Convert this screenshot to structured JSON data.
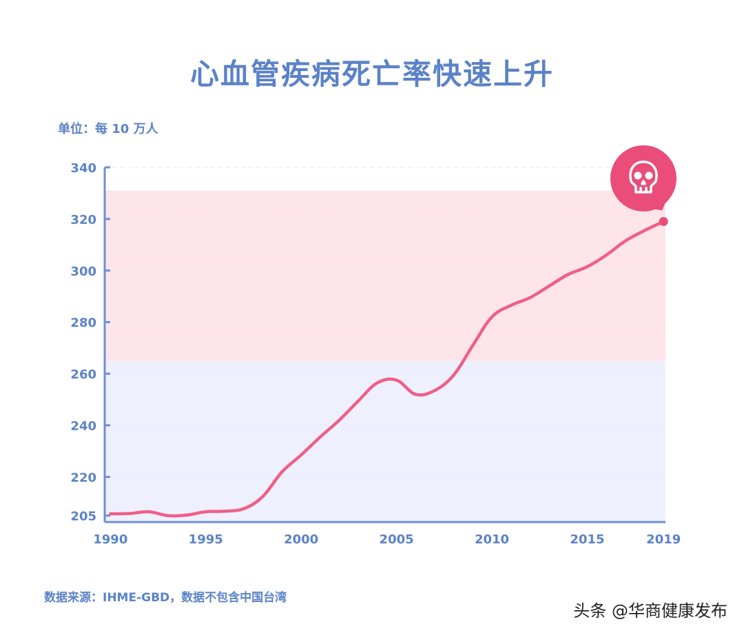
{
  "title": "心血管疾病死亡率快速上升",
  "unit_label": "单位：每 10 万人",
  "source": "数据来源：IHME-GBD，数据不包含中国台湾",
  "watermark": "头条 @华商健康发布",
  "colors": {
    "axis": "#6f8fd3",
    "text": "#5b82c8",
    "line": "#ef5f86",
    "band_high": "#fde5ea",
    "band_low": "#eef0fd",
    "marker": "#ea4d7a"
  },
  "chart_data": {
    "type": "line",
    "title": "心血管疾病死亡率快速上升",
    "ylabel": "单位：每 10 万人",
    "xlabel": "",
    "xlim": [
      1989.7,
      2019.1
    ],
    "ylim": [
      202.5,
      340
    ],
    "yticks": [
      205,
      220,
      240,
      260,
      280,
      300,
      320,
      340
    ],
    "xticks": [
      1990,
      1995,
      2000,
      2005,
      2010,
      2015,
      2019
    ],
    "bands": [
      {
        "from": 202.5,
        "to": 265,
        "color": "#eef0fd"
      },
      {
        "from": 265,
        "to": 331,
        "color": "#fde5ea"
      }
    ],
    "series": [
      {
        "x": [
          1990,
          1991,
          1992,
          1993,
          1994,
          1995,
          1996,
          1997,
          1998,
          1999,
          2000,
          2001,
          2002,
          2003,
          2004,
          2005,
          2006,
          2007,
          2008,
          2009,
          2010,
          2011,
          2012,
          2013,
          2014,
          2015,
          2016,
          2017,
          2018,
          2019
        ],
        "values": [
          205.7,
          205.8,
          206.5,
          205.0,
          205.2,
          206.5,
          206.7,
          207.7,
          212.5,
          222.0,
          228.5,
          235.5,
          242.0,
          249.5,
          256.5,
          257.5,
          252.0,
          253.5,
          259.5,
          271.0,
          282.0,
          286.5,
          289.5,
          294.0,
          298.5,
          301.5,
          306.0,
          311.5,
          315.5,
          319.0
        ]
      }
    ],
    "end_marker": {
      "x": 2019,
      "y": 319,
      "icon": "skull-icon"
    }
  }
}
